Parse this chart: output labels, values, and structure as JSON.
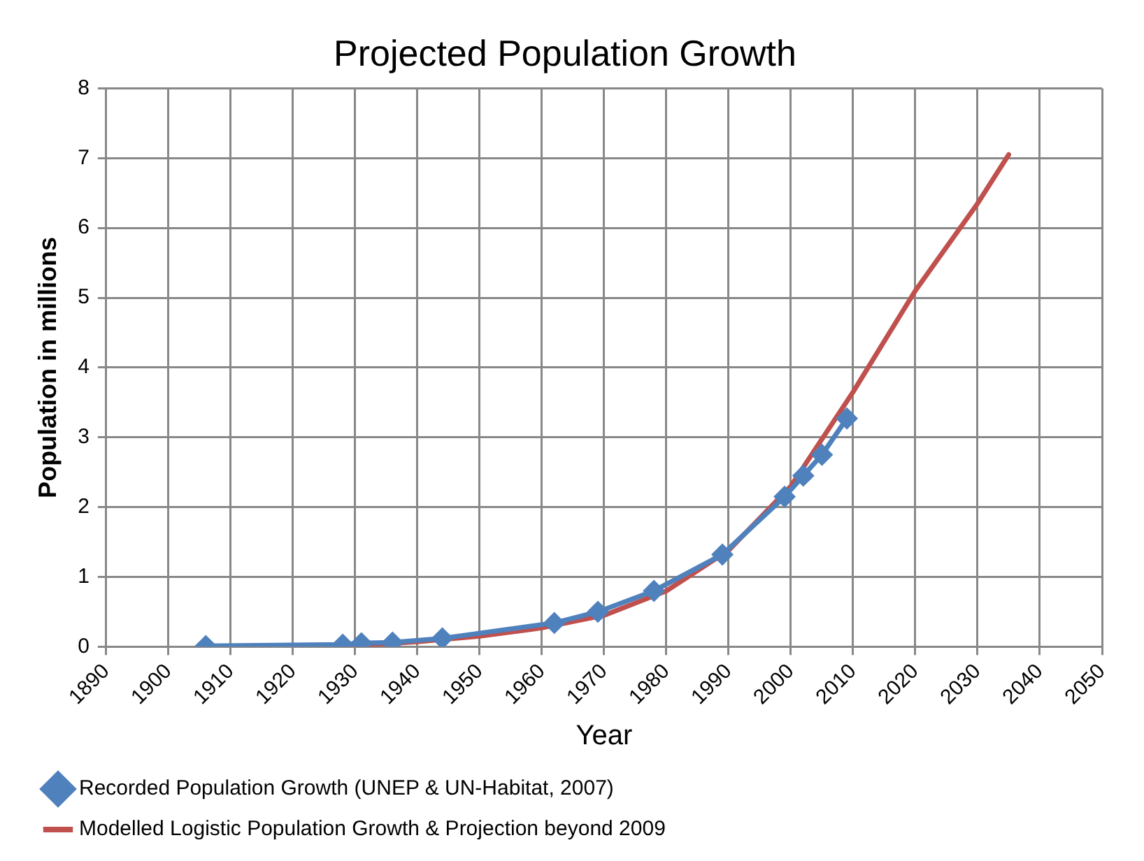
{
  "chart_data": {
    "type": "line",
    "title": "Projected Population Growth",
    "xlabel": "Year",
    "ylabel": "Population in millions",
    "xlim": [
      1890,
      2050
    ],
    "xticks": [
      1890,
      1900,
      1910,
      1920,
      1930,
      1940,
      1950,
      1960,
      1970,
      1980,
      1990,
      2000,
      2010,
      2020,
      2030,
      2040,
      2050
    ],
    "ylim": [
      0,
      8
    ],
    "yticks": [
      0,
      1,
      2,
      3,
      4,
      5,
      6,
      7,
      8
    ],
    "grid": true,
    "legend": "bottom",
    "series": [
      {
        "name": "Recorded Population Growth (UNEP & UN-Habitat, 2007)",
        "color": "#4f81bd",
        "marker": "diamond",
        "x": [
          1906,
          1928,
          1931,
          1936,
          1944,
          1962,
          1969,
          1978,
          1989,
          1999,
          2002,
          2005,
          2009
        ],
        "values": [
          0.01,
          0.03,
          0.05,
          0.06,
          0.12,
          0.34,
          0.5,
          0.8,
          1.32,
          2.15,
          2.45,
          2.75,
          3.27
        ]
      },
      {
        "name": "Modelled Logistic Population Growth & Projection beyond 2009",
        "color": "#c0504d",
        "marker": "none",
        "x": [
          1928,
          1940,
          1950,
          1960,
          1970,
          1980,
          1990,
          2000,
          2010,
          2020,
          2030,
          2035
        ],
        "values": [
          0,
          0.07,
          0.15,
          0.27,
          0.45,
          0.8,
          1.38,
          2.3,
          3.65,
          5.1,
          6.35,
          7.05
        ]
      }
    ]
  }
}
